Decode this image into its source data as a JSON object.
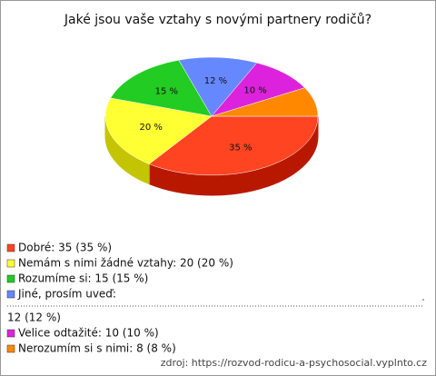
{
  "chart_data": {
    "type": "pie3d",
    "title": "Jaké jsou vaše vztahy s novými partnery rodičů?",
    "categories": [
      "Dobré",
      "Nemám s nimi žádné vztahy",
      "Rozumíme si",
      "Jiné, prosím uveď:",
      "Velice odtažité",
      "Nerozumím si s nimi"
    ],
    "values": [
      35,
      20,
      15,
      12,
      10,
      8
    ],
    "value_labels": [
      "35 %",
      "20 %",
      "15 %",
      "12 %",
      "10 %",
      null
    ],
    "colors": [
      "#ff4422",
      "#ffff33",
      "#22cc22",
      "#6688ff",
      "#dd22dd",
      "#ff8800"
    ],
    "side_colors": [
      "#b81800",
      "#c4c400",
      "#119011",
      "#3850c0",
      "#9a109a",
      "#c05e00"
    ],
    "legend": [
      {
        "label": "Dobré: 35 (35 %)"
      },
      {
        "label": "Nemám s nimi žádné vztahy: 20 (20 %)"
      },
      {
        "label": "Rozumíme si: 15 (15 %)"
      },
      {
        "label": "Jiné, prosím uveď:",
        "detail": "12 (12 %)"
      },
      {
        "label": "Velice odtažité: 10 (10 %)"
      },
      {
        "label": "Nerozumím si s nimi: 8 (8 %)"
      }
    ],
    "source": "zdroj: https://rozvod-rodicu-a-psychosocial.vyplnto.cz"
  }
}
